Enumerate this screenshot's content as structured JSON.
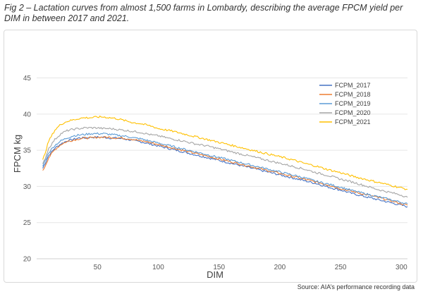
{
  "caption": "Fig 2 – Lactation curves from almost 1,500 farms in Lombardy, describing the average FPCM yield per DIM in between 2017 and 2021.",
  "source": "Source: AIA’s performance recording data",
  "chart_data": {
    "type": "line",
    "title": "",
    "xlabel": "DIM",
    "ylabel": "FPCM kg",
    "xlim": [
      0,
      305
    ],
    "ylim": [
      20,
      47
    ],
    "xticks": [
      50,
      100,
      150,
      200,
      250,
      300
    ],
    "yticks": [
      20,
      25,
      30,
      35,
      40,
      45
    ],
    "grid": "horizontal",
    "legend_position": "top-right",
    "series": [
      {
        "name": "FCPM_2017",
        "color": "#4472c4",
        "points": [
          [
            5,
            32.5
          ],
          [
            10,
            34.3
          ],
          [
            15,
            35.3
          ],
          [
            20,
            35.9
          ],
          [
            25,
            36.3
          ],
          [
            30,
            36.5
          ],
          [
            35,
            36.7
          ],
          [
            40,
            36.7
          ],
          [
            45,
            36.8
          ],
          [
            50,
            36.8
          ],
          [
            55,
            36.8
          ],
          [
            60,
            36.7
          ],
          [
            65,
            36.7
          ],
          [
            70,
            36.6
          ],
          [
            75,
            36.5
          ],
          [
            80,
            36.3
          ],
          [
            85,
            36.2
          ],
          [
            90,
            36.0
          ],
          [
            95,
            35.8
          ],
          [
            100,
            35.6
          ],
          [
            110,
            35.2
          ],
          [
            120,
            34.8
          ],
          [
            130,
            34.4
          ],
          [
            140,
            34.0
          ],
          [
            150,
            33.6
          ],
          [
            160,
            33.2
          ],
          [
            170,
            32.8
          ],
          [
            180,
            32.4
          ],
          [
            190,
            32.0
          ],
          [
            200,
            31.6
          ],
          [
            210,
            31.2
          ],
          [
            220,
            30.8
          ],
          [
            230,
            30.4
          ],
          [
            240,
            29.9
          ],
          [
            250,
            29.5
          ],
          [
            260,
            29.0
          ],
          [
            270,
            28.6
          ],
          [
            280,
            28.2
          ],
          [
            290,
            27.8
          ],
          [
            300,
            27.4
          ],
          [
            305,
            27.2
          ]
        ]
      },
      {
        "name": "FCPM_2018",
        "color": "#ed7d31",
        "points": [
          [
            5,
            32.1
          ],
          [
            10,
            34.0
          ],
          [
            15,
            35.1
          ],
          [
            20,
            35.8
          ],
          [
            25,
            36.2
          ],
          [
            30,
            36.4
          ],
          [
            35,
            36.6
          ],
          [
            40,
            36.7
          ],
          [
            45,
            36.7
          ],
          [
            50,
            36.8
          ],
          [
            55,
            36.8
          ],
          [
            60,
            36.8
          ],
          [
            65,
            36.7
          ],
          [
            70,
            36.7
          ],
          [
            75,
            36.6
          ],
          [
            80,
            36.5
          ],
          [
            85,
            36.3
          ],
          [
            90,
            36.2
          ],
          [
            95,
            36.0
          ],
          [
            100,
            35.8
          ],
          [
            110,
            35.4
          ],
          [
            120,
            35.0
          ],
          [
            130,
            34.6
          ],
          [
            140,
            34.2
          ],
          [
            150,
            33.8
          ],
          [
            160,
            33.4
          ],
          [
            170,
            33.0
          ],
          [
            180,
            32.6
          ],
          [
            190,
            32.2
          ],
          [
            200,
            31.8
          ],
          [
            210,
            31.4
          ],
          [
            220,
            31.0
          ],
          [
            230,
            30.6
          ],
          [
            240,
            30.2
          ],
          [
            250,
            29.7
          ],
          [
            260,
            29.3
          ],
          [
            270,
            28.9
          ],
          [
            280,
            28.5
          ],
          [
            290,
            28.1
          ],
          [
            300,
            27.6
          ],
          [
            305,
            27.4
          ]
        ]
      },
      {
        "name": "FCPM_2019",
        "color": "#5b9bd5",
        "points": [
          [
            5,
            32.8
          ],
          [
            10,
            34.7
          ],
          [
            15,
            35.7
          ],
          [
            20,
            36.3
          ],
          [
            25,
            36.7
          ],
          [
            30,
            37.0
          ],
          [
            35,
            37.1
          ],
          [
            40,
            37.2
          ],
          [
            45,
            37.3
          ],
          [
            50,
            37.3
          ],
          [
            55,
            37.3
          ],
          [
            60,
            37.2
          ],
          [
            65,
            37.1
          ],
          [
            70,
            37.0
          ],
          [
            75,
            36.9
          ],
          [
            80,
            36.7
          ],
          [
            85,
            36.6
          ],
          [
            90,
            36.4
          ],
          [
            95,
            36.2
          ],
          [
            100,
            36.0
          ],
          [
            110,
            35.6
          ],
          [
            120,
            35.2
          ],
          [
            130,
            34.8
          ],
          [
            140,
            34.4
          ],
          [
            150,
            34.0
          ],
          [
            160,
            33.6
          ],
          [
            170,
            33.2
          ],
          [
            180,
            32.8
          ],
          [
            190,
            32.4
          ],
          [
            200,
            32.0
          ],
          [
            210,
            31.6
          ],
          [
            220,
            31.2
          ],
          [
            230,
            30.7
          ],
          [
            240,
            30.3
          ],
          [
            250,
            29.9
          ],
          [
            260,
            29.4
          ],
          [
            270,
            29.0
          ],
          [
            280,
            28.6
          ],
          [
            290,
            28.2
          ],
          [
            300,
            27.8
          ],
          [
            305,
            27.6
          ]
        ]
      },
      {
        "name": "FCPM_2020",
        "color": "#a5a5a5",
        "points": [
          [
            5,
            33.0
          ],
          [
            10,
            35.3
          ],
          [
            15,
            36.5
          ],
          [
            20,
            37.3
          ],
          [
            25,
            37.7
          ],
          [
            30,
            37.9
          ],
          [
            35,
            38.0
          ],
          [
            40,
            38.1
          ],
          [
            45,
            38.1
          ],
          [
            50,
            38.1
          ],
          [
            55,
            38.0
          ],
          [
            60,
            38.0
          ],
          [
            65,
            37.9
          ],
          [
            70,
            37.8
          ],
          [
            75,
            37.7
          ],
          [
            80,
            37.6
          ],
          [
            85,
            37.5
          ],
          [
            90,
            37.3
          ],
          [
            95,
            37.1
          ],
          [
            100,
            37.0
          ],
          [
            110,
            36.6
          ],
          [
            120,
            36.3
          ],
          [
            130,
            35.9
          ],
          [
            140,
            35.6
          ],
          [
            150,
            35.2
          ],
          [
            160,
            34.8
          ],
          [
            170,
            34.4
          ],
          [
            180,
            34.0
          ],
          [
            190,
            33.6
          ],
          [
            200,
            33.2
          ],
          [
            210,
            32.8
          ],
          [
            220,
            32.4
          ],
          [
            230,
            31.9
          ],
          [
            240,
            31.5
          ],
          [
            250,
            31.0
          ],
          [
            260,
            30.6
          ],
          [
            270,
            30.1
          ],
          [
            280,
            29.6
          ],
          [
            290,
            29.2
          ],
          [
            300,
            28.8
          ],
          [
            305,
            28.5
          ]
        ]
      },
      {
        "name": "FCPM_2021",
        "color": "#ffc000",
        "points": [
          [
            5,
            33.6
          ],
          [
            10,
            36.3
          ],
          [
            15,
            37.8
          ],
          [
            20,
            38.6
          ],
          [
            25,
            39.0
          ],
          [
            30,
            39.2
          ],
          [
            35,
            39.4
          ],
          [
            40,
            39.5
          ],
          [
            45,
            39.5
          ],
          [
            50,
            39.6
          ],
          [
            55,
            39.6
          ],
          [
            60,
            39.5
          ],
          [
            65,
            39.4
          ],
          [
            70,
            39.2
          ],
          [
            75,
            39.0
          ],
          [
            80,
            38.8
          ],
          [
            85,
            38.7
          ],
          [
            90,
            38.5
          ],
          [
            95,
            38.3
          ],
          [
            100,
            38.0
          ],
          [
            110,
            37.7
          ],
          [
            120,
            37.3
          ],
          [
            130,
            36.9
          ],
          [
            140,
            36.5
          ],
          [
            150,
            36.1
          ],
          [
            160,
            35.7
          ],
          [
            170,
            35.3
          ],
          [
            180,
            34.9
          ],
          [
            190,
            34.5
          ],
          [
            200,
            34.1
          ],
          [
            210,
            33.7
          ],
          [
            220,
            33.2
          ],
          [
            230,
            32.8
          ],
          [
            240,
            32.3
          ],
          [
            250,
            31.9
          ],
          [
            260,
            31.4
          ],
          [
            270,
            31.0
          ],
          [
            280,
            30.6
          ],
          [
            290,
            30.2
          ],
          [
            300,
            29.8
          ],
          [
            305,
            29.6
          ]
        ]
      }
    ]
  }
}
